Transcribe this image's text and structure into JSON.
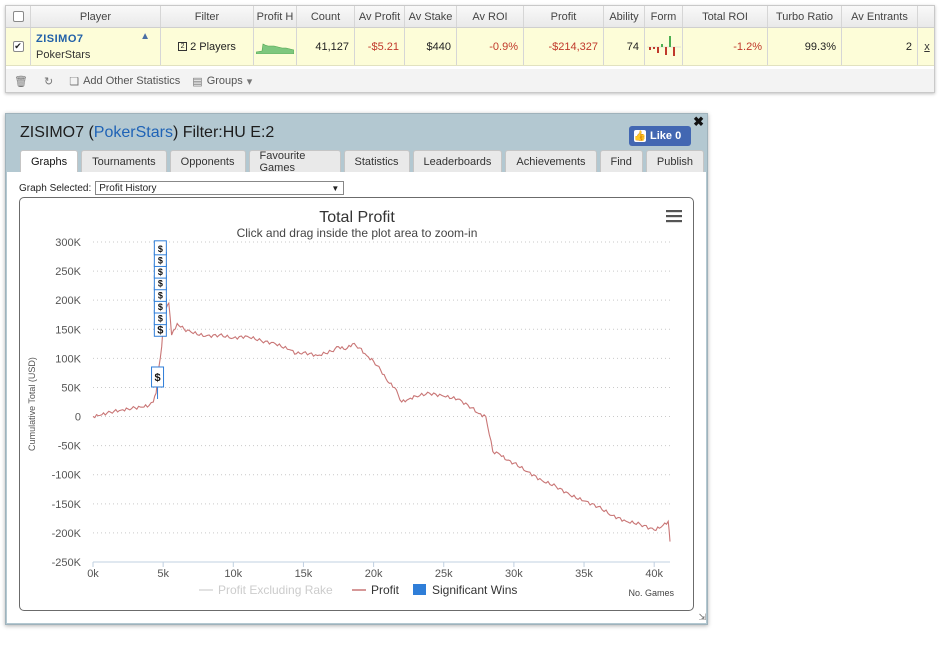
{
  "table": {
    "headers": [
      "Player",
      "Filter",
      "Profit H",
      "Count",
      "Av Profit",
      "Av Stake",
      "Av ROI",
      "Profit",
      "Ability",
      "Form",
      "Total ROI",
      "Turbo Ratio",
      "Av Entrants"
    ],
    "row": {
      "player_name": "ZISIMO7",
      "player_site": "PokerStars",
      "filter": "2 Players",
      "count": "41,127",
      "av_profit": "-$5.21",
      "av_stake": "$440",
      "av_roi": "-0.9%",
      "profit": "-$214,327",
      "ability": "74",
      "total_roi": "-1.2%",
      "turbo_ratio": "99.3%",
      "av_entrants": "2",
      "remove": "x"
    },
    "footer": {
      "add_stats": "Add Other Statistics",
      "groups": "Groups"
    }
  },
  "window": {
    "title_player": "ZISIMO7",
    "title_site": "PokerStars",
    "title_filter": "Filter:HU E:2",
    "like_label": "Like 0",
    "tabs": [
      "Graphs",
      "Tournaments",
      "Opponents",
      "Favourite Games",
      "Statistics",
      "Leaderboards",
      "Achievements",
      "Find",
      "Publish"
    ],
    "graph_selected_label": "Graph Selected:",
    "graph_selected_value": "Profit History"
  },
  "colors": {
    "profit_line": "#c97676",
    "excl_rake_line": "#d9d9d9",
    "significant_wins": "#2f7ed8",
    "link_blue": "#1f63b6"
  },
  "chart_data": {
    "type": "line",
    "title": "Total Profit",
    "subtitle": "Click and drag inside the plot area to zoom-in",
    "ylabel": "Cumulative Total (USD)",
    "xlabel": "No. Games",
    "xlim": [
      0,
      41127
    ],
    "ylim": [
      -250000,
      300000
    ],
    "x_ticks": [
      0,
      5000,
      10000,
      15000,
      20000,
      25000,
      30000,
      35000,
      40000
    ],
    "x_tick_labels": [
      "0k",
      "5k",
      "10k",
      "15k",
      "20k",
      "25k",
      "30k",
      "35k",
      "40k"
    ],
    "y_ticks": [
      300000,
      250000,
      200000,
      150000,
      100000,
      50000,
      0,
      -50000,
      -100000,
      -150000,
      -200000,
      -250000
    ],
    "y_tick_labels": [
      "300K",
      "250K",
      "200K",
      "150K",
      "100K",
      "50K",
      "0",
      "-50K",
      "-100K",
      "-150K",
      "-200K",
      "-250K"
    ],
    "grid": "horizontal-dotted",
    "legend": "bottom-center",
    "series": [
      {
        "name": "Profit Excluding Rake",
        "visible": false,
        "values": []
      },
      {
        "name": "Profit",
        "visible": true,
        "x": [
          0,
          500,
          1000,
          1500,
          2000,
          2500,
          3000,
          3500,
          4000,
          4300,
          4500,
          4700,
          4900,
          5000,
          5200,
          5400,
          5600,
          6000,
          6500,
          7000,
          8000,
          9000,
          10000,
          11000,
          12000,
          13000,
          14000,
          14500,
          15000,
          16000,
          17000,
          17500,
          18000,
          18500,
          19000,
          19500,
          20000,
          20500,
          21000,
          21500,
          22000,
          22500,
          23000,
          24000,
          25000,
          26000,
          27000,
          27500,
          28000,
          28500,
          29000,
          29500,
          30000,
          31000,
          32000,
          33000,
          34000,
          35000,
          36000,
          37000,
          38000,
          39000,
          40000,
          40500,
          41000,
          41127
        ],
        "values": [
          0,
          2000,
          6000,
          9000,
          11000,
          13000,
          15000,
          16000,
          19000,
          25000,
          40000,
          85000,
          120000,
          160000,
          185000,
          195000,
          140000,
          160000,
          150000,
          145000,
          138000,
          140000,
          135000,
          138000,
          130000,
          125000,
          115000,
          108000,
          110000,
          105000,
          112000,
          120000,
          115000,
          125000,
          118000,
          105000,
          95000,
          80000,
          60000,
          50000,
          25000,
          30000,
          35000,
          40000,
          35000,
          30000,
          15000,
          5000,
          0,
          -60000,
          -65000,
          -75000,
          -80000,
          -95000,
          -110000,
          -120000,
          -135000,
          -145000,
          -155000,
          -170000,
          -180000,
          -185000,
          -195000,
          -190000,
          -180000,
          -215000
        ]
      }
    ],
    "markers": {
      "name": "Significant Wins",
      "label": "$",
      "points": [
        {
          "x": 4600,
          "y": 68000
        },
        {
          "x": 4800,
          "y": 150000
        },
        {
          "x": 4800,
          "y": 170000
        },
        {
          "x": 4800,
          "y": 190000
        },
        {
          "x": 4800,
          "y": 210000
        },
        {
          "x": 4800,
          "y": 230000
        },
        {
          "x": 4800,
          "y": 250000
        },
        {
          "x": 4800,
          "y": 270000
        },
        {
          "x": 4800,
          "y": 290000
        }
      ]
    }
  }
}
